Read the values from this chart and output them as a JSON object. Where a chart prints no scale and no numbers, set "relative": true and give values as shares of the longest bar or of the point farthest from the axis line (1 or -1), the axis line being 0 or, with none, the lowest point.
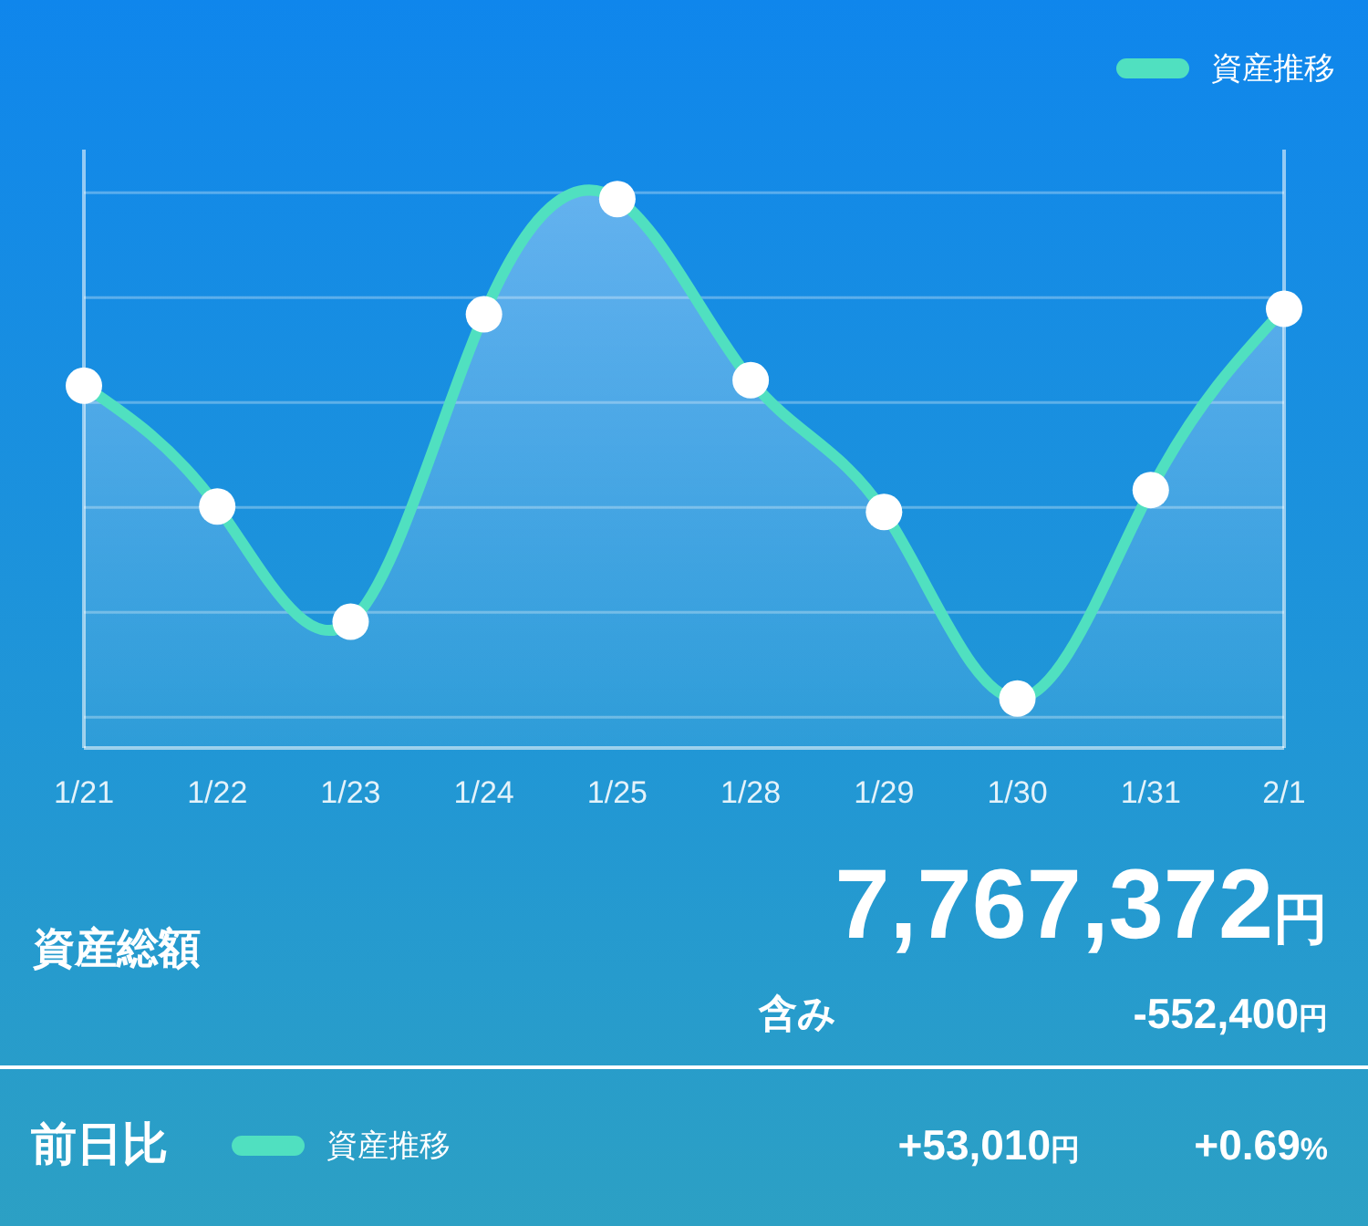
{
  "chart_data": {
    "type": "area",
    "relative": true,
    "categories": [
      "1/21",
      "1/22",
      "1/23",
      "1/24",
      "1/25",
      "1/28",
      "1/29",
      "1/30",
      "1/31",
      "2/1"
    ],
    "series": [
      {
        "name": "資産推移",
        "color": "#50e0c0",
        "values": [
          0.66,
          0.44,
          0.23,
          0.79,
          1,
          0.67,
          0.43,
          0.09,
          0.47,
          0.8
        ]
      }
    ],
    "marker": "circle",
    "grid": "y",
    "legend": "top right",
    "annotations": [
      "資産総額",
      "7,767,372円",
      "含み",
      "-552,400円",
      "前日比",
      "+53,010円",
      "+0.69%"
    ]
  }
}
